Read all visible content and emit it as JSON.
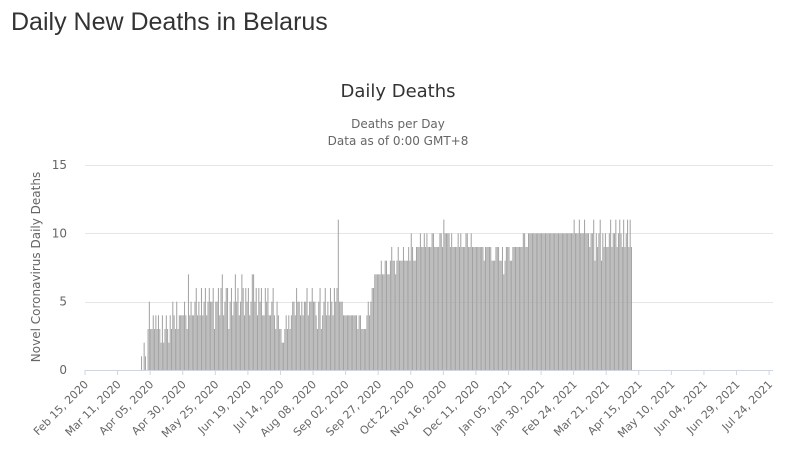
{
  "page": {
    "heading": "Daily New Deaths in Belarus"
  },
  "colors": {
    "bar": "#a3a3a3",
    "grid": "#e6e6e6",
    "text": "#333333",
    "axis_text": "#666666"
  },
  "chart_data": {
    "type": "bar",
    "title": "Daily Deaths",
    "subtitle": "Deaths per Day",
    "subtitle2": "Data as of 0:00 GMT+8",
    "xlabel": "",
    "ylabel": "Novel Coronavirus Daily Deaths",
    "ylim": [
      0,
      15
    ],
    "yticks": [
      0,
      5,
      10,
      15
    ],
    "grid": true,
    "legend": "none",
    "x_start": "Feb 15, 2020",
    "x_end": "Jul 27, 2021",
    "x_tick_labels": [
      "Feb 15, 2020",
      "Mar 11, 2020",
      "Apr 05, 2020",
      "Apr 30, 2020",
      "May 25, 2020",
      "Jun 19, 2020",
      "Jul 14, 2020",
      "Aug 08, 2020",
      "Sep 02, 2020",
      "Sep 27, 2020",
      "Oct 22, 2020",
      "Nov 16, 2020",
      "Dec 11, 2020",
      "Jan 05, 2021",
      "Jan 30, 2021",
      "Feb 24, 2021",
      "Mar 21, 2021",
      "Apr 15, 2021",
      "May 10, 2021",
      "Jun 04, 2021",
      "Jun 29, 2021",
      "Jul 24, 2021"
    ],
    "values": [
      0,
      0,
      0,
      0,
      0,
      0,
      0,
      0,
      0,
      0,
      0,
      0,
      0,
      0,
      0,
      0,
      0,
      0,
      0,
      0,
      0,
      0,
      0,
      0,
      0,
      0,
      0,
      0,
      0,
      0,
      0,
      0,
      0,
      0,
      0,
      0,
      0,
      0,
      0,
      0,
      0,
      0,
      0,
      1,
      0,
      2,
      1,
      0,
      3,
      5,
      3,
      3,
      4,
      3,
      4,
      3,
      4,
      3,
      2,
      4,
      2,
      3,
      4,
      3,
      2,
      4,
      3,
      5,
      4,
      3,
      5,
      3,
      4,
      4,
      4,
      4,
      5,
      4,
      3,
      7,
      4,
      5,
      4,
      4,
      5,
      6,
      4,
      5,
      4,
      6,
      4,
      5,
      6,
      4,
      5,
      6,
      5,
      5,
      6,
      3,
      5,
      5,
      6,
      4,
      6,
      7,
      4,
      5,
      6,
      6,
      3,
      5,
      6,
      4,
      5,
      7,
      5,
      6,
      4,
      5,
      7,
      6,
      4,
      6,
      5,
      6,
      4,
      5,
      7,
      7,
      5,
      6,
      4,
      6,
      5,
      6,
      4,
      4,
      6,
      5,
      6,
      4,
      4,
      5,
      6,
      4,
      3,
      5,
      4,
      3,
      3,
      2,
      2,
      3,
      4,
      3,
      4,
      3,
      4,
      5,
      5,
      4,
      6,
      5,
      5,
      4,
      5,
      4,
      5,
      5,
      6,
      4,
      5,
      5,
      6,
      5,
      5,
      4,
      3,
      5,
      6,
      3,
      4,
      5,
      6,
      4,
      5,
      4,
      6,
      5,
      4,
      6,
      5,
      6,
      11,
      5,
      5,
      5,
      4,
      4,
      4,
      4,
      4,
      4,
      4,
      4,
      4,
      4,
      4,
      3,
      4,
      4,
      3,
      3,
      3,
      3,
      4,
      5,
      4,
      5,
      6,
      6,
      7,
      7,
      7,
      7,
      7,
      8,
      7,
      7,
      8,
      8,
      7,
      7,
      8,
      9,
      8,
      8,
      7,
      8,
      9,
      8,
      8,
      8,
      9,
      8,
      8,
      8,
      9,
      8,
      10,
      9,
      8,
      8,
      9,
      9,
      9,
      10,
      9,
      9,
      10,
      9,
      10,
      9,
      9,
      9,
      10,
      10,
      9,
      9,
      9,
      9,
      10,
      10,
      9,
      11,
      10,
      10,
      10,
      10,
      9,
      10,
      9,
      9,
      9,
      9,
      10,
      9,
      10,
      9,
      9,
      9,
      10,
      10,
      9,
      9,
      10,
      9,
      9,
      9,
      9,
      9,
      9,
      9,
      9,
      9,
      8,
      9,
      9,
      9,
      9,
      9,
      8,
      8,
      8,
      9,
      9,
      9,
      8,
      8,
      9,
      7,
      8,
      9,
      9,
      9,
      8,
      8,
      9,
      9,
      9,
      9,
      9,
      9,
      9,
      9,
      10,
      10,
      9,
      9,
      10,
      10,
      10,
      10,
      10,
      10,
      10,
      10,
      10,
      10,
      10,
      10,
      10,
      10,
      10,
      10,
      10,
      10,
      10,
      10,
      10,
      10,
      10,
      10,
      10,
      10,
      10,
      10,
      10,
      10,
      10,
      10,
      10,
      10,
      10,
      11,
      10,
      10,
      10,
      11,
      10,
      10,
      10,
      11,
      10,
      10,
      10,
      9,
      10,
      10,
      11,
      8,
      10,
      9,
      10,
      11,
      8,
      10,
      9,
      10,
      9,
      9,
      10,
      11,
      9,
      10,
      10,
      11,
      9,
      10,
      11,
      10,
      9,
      11,
      9,
      10,
      11,
      9,
      11,
      9
    ]
  }
}
